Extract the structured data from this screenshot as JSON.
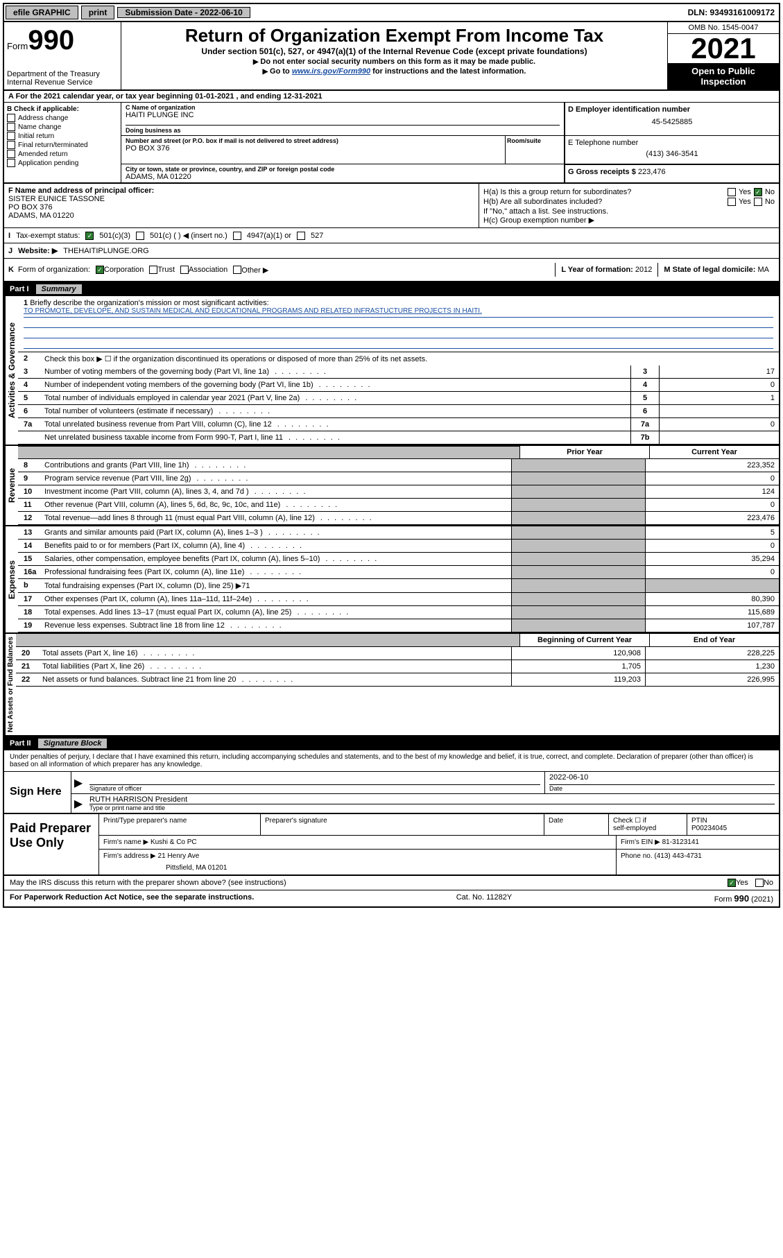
{
  "topbar": {
    "efile": "efile GRAPHIC",
    "print": "print",
    "sub_label": "Submission Date - 2022-06-10",
    "dln": "DLN: 93493161009172"
  },
  "header": {
    "form_prefix": "Form",
    "form_no": "990",
    "dept1": "Department of the Treasury",
    "dept2": "Internal Revenue Service",
    "title": "Return of Organization Exempt From Income Tax",
    "subtitle": "Under section 501(c), 527, or 4947(a)(1) of the Internal Revenue Code (except private foundations)",
    "instr1": "Do not enter social security numbers on this form as it may be made public.",
    "instr2a": "Go to ",
    "instr2link": "www.irs.gov/Form990",
    "instr2b": " for instructions and the latest information.",
    "omb": "OMB No. 1545-0047",
    "year": "2021",
    "open1": "Open to Public",
    "open2": "Inspection"
  },
  "rowA": "A For the 2021 calendar year, or tax year beginning 01-01-2021   , and ending 12-31-2021",
  "colB": {
    "title": "B Check if applicable:",
    "items": [
      "Address change",
      "Name change",
      "Initial return",
      "Final return/terminated",
      "Amended return",
      "Application pending"
    ]
  },
  "colC": {
    "name_label": "C Name of organization",
    "name": "HAITI PLUNGE INC",
    "dba_label": "Doing business as",
    "dba": "",
    "addr_label": "Number and street (or P.O. box if mail is not delivered to street address)",
    "room_label": "Room/suite",
    "addr": "PO BOX 376",
    "city_label": "City or town, state or province, country, and ZIP or foreign postal code",
    "city": "ADAMS, MA  01220"
  },
  "colD": {
    "d_label": "D Employer identification number",
    "d_val": "45-5425885",
    "e_label": "E Telephone number",
    "e_val": "(413) 346-3541",
    "g_label": "G Gross receipts $",
    "g_val": "223,476"
  },
  "sectionF": {
    "f_label": "F Name and address of principal officer:",
    "f_name": "SISTER EUNICE TASSONE",
    "f_addr1": "PO BOX 376",
    "f_addr2": "ADAMS, MA  01220",
    "ha": "H(a)  Is this a group return for subordinates?",
    "hb": "H(b)  Are all subordinates included?",
    "hb_note": "If \"No,\" attach a list. See instructions.",
    "hc": "H(c)  Group exemption number ▶",
    "yes": "Yes",
    "no": "No"
  },
  "rowI": {
    "prefix": "I",
    "label": "Tax-exempt status:",
    "opt1": "501(c)(3)",
    "opt2": "501(c) (   ) ◀ (insert no.)",
    "opt3": "4947(a)(1) or",
    "opt4": "527"
  },
  "rowJ": {
    "prefix": "J",
    "label": "Website: ▶",
    "val": "THEHAITIPLUNGE.ORG"
  },
  "rowK": {
    "prefix": "K",
    "label": "Form of organization:",
    "opts": [
      "Corporation",
      "Trust",
      "Association",
      "Other ▶"
    ],
    "l_label": "L Year of formation:",
    "l_val": "2012",
    "m_label": "M State of legal domicile:",
    "m_val": "MA"
  },
  "partI": {
    "label": "Part I",
    "title": "Summary"
  },
  "briefly": {
    "n": "1",
    "label": "Briefly describe the organization's mission or most significant activities:",
    "mission": "TO PROMOTE, DEVELOPE, AND SUSTAIN MEDICAL AND EDUCATIONAL PROGRAMS AND RELATED INFRASTUCTURE PROJECTS IN HAITI."
  },
  "gov_label": "Activities & Governance",
  "rev_label": "Revenue",
  "exp_label": "Expenses",
  "net_label": "Net Assets or Fund Balances",
  "line2": {
    "n": "2",
    "text": "Check this box ▶ ☐  if the organization discontinued its operations or disposed of more than 25% of its net assets."
  },
  "simple_rows": [
    {
      "n": "3",
      "text": "Number of voting members of the governing body (Part VI, line 1a)",
      "box": "3",
      "val": "17"
    },
    {
      "n": "4",
      "text": "Number of independent voting members of the governing body (Part VI, line 1b)",
      "box": "4",
      "val": "0"
    },
    {
      "n": "5",
      "text": "Total number of individuals employed in calendar year 2021 (Part V, line 2a)",
      "box": "5",
      "val": "1"
    },
    {
      "n": "6",
      "text": "Total number of volunteers (estimate if necessary)",
      "box": "6",
      "val": ""
    },
    {
      "n": "7a",
      "text": "Total unrelated business revenue from Part VIII, column (C), line 12",
      "box": "7a",
      "val": "0"
    },
    {
      "n": "",
      "text": "Net unrelated business taxable income from Form 990-T, Part I, line 11",
      "box": "7b",
      "val": ""
    }
  ],
  "two_col_hdr": {
    "prior": "Prior Year",
    "current": "Current Year"
  },
  "rev_rows": [
    {
      "n": "8",
      "text": "Contributions and grants (Part VIII, line 1h)",
      "prior": "",
      "curr": "223,352"
    },
    {
      "n": "9",
      "text": "Program service revenue (Part VIII, line 2g)",
      "prior": "",
      "curr": "0"
    },
    {
      "n": "10",
      "text": "Investment income (Part VIII, column (A), lines 3, 4, and 7d )",
      "prior": "",
      "curr": "124"
    },
    {
      "n": "11",
      "text": "Other revenue (Part VIII, column (A), lines 5, 6d, 8c, 9c, 10c, and 11e)",
      "prior": "",
      "curr": "0"
    },
    {
      "n": "12",
      "text": "Total revenue—add lines 8 through 11 (must equal Part VIII, column (A), line 12)",
      "prior": "",
      "curr": "223,476"
    }
  ],
  "exp_rows": [
    {
      "n": "13",
      "text": "Grants and similar amounts paid (Part IX, column (A), lines 1–3 )",
      "prior": "",
      "curr": "5"
    },
    {
      "n": "14",
      "text": "Benefits paid to or for members (Part IX, column (A), line 4)",
      "prior": "",
      "curr": "0"
    },
    {
      "n": "15",
      "text": "Salaries, other compensation, employee benefits (Part IX, column (A), lines 5–10)",
      "prior": "",
      "curr": "35,294"
    },
    {
      "n": "16a",
      "text": "Professional fundraising fees (Part IX, column (A), line 11e)",
      "prior": "",
      "curr": "0"
    }
  ],
  "line16b": {
    "n": "b",
    "text": "Total fundraising expenses (Part IX, column (D), line 25) ▶71"
  },
  "exp_rows2": [
    {
      "n": "17",
      "text": "Other expenses (Part IX, column (A), lines 11a–11d, 11f–24e)",
      "prior": "",
      "curr": "80,390"
    },
    {
      "n": "18",
      "text": "Total expenses. Add lines 13–17 (must equal Part IX, column (A), line 25)",
      "prior": "",
      "curr": "115,689"
    },
    {
      "n": "19",
      "text": "Revenue less expenses. Subtract line 18 from line 12",
      "prior": "",
      "curr": "107,787"
    }
  ],
  "net_hdr": {
    "begin": "Beginning of Current Year",
    "end": "End of Year"
  },
  "net_rows": [
    {
      "n": "20",
      "text": "Total assets (Part X, line 16)",
      "begin": "120,908",
      "end": "228,225"
    },
    {
      "n": "21",
      "text": "Total liabilities (Part X, line 26)",
      "begin": "1,705",
      "end": "1,230"
    },
    {
      "n": "22",
      "text": "Net assets or fund balances. Subtract line 21 from line 20",
      "begin": "119,203",
      "end": "226,995"
    }
  ],
  "partII": {
    "label": "Part II",
    "title": "Signature Block"
  },
  "penalties": "Under penalties of perjury, I declare that I have examined this return, including accompanying schedules and statements, and to the best of my knowledge and belief, it is true, correct, and complete. Declaration of preparer (other than officer) is based on all information of which preparer has any knowledge.",
  "sign": {
    "left": "Sign Here",
    "sig_label": "Signature of officer",
    "date_label": "Date",
    "date": "2022-06-10",
    "name": "RUTH HARRISON  President",
    "name_label": "Type or print name and title"
  },
  "paid": {
    "left": "Paid Preparer Use Only",
    "h1": "Print/Type preparer's name",
    "h2": "Preparer's signature",
    "h3": "Date",
    "h4a": "Check ☐ if",
    "h4b": "self-employed",
    "h5": "PTIN",
    "ptin": "P00234045",
    "firm_name_label": "Firm's name    ▶",
    "firm_name": "Kushi & Co PC",
    "firm_ein_label": "Firm's EIN ▶",
    "firm_ein": "81-3123141",
    "firm_addr_label": "Firm's address ▶",
    "firm_addr1": "21 Henry Ave",
    "firm_addr2": "Pittsfield, MA  01201",
    "phone_label": "Phone no.",
    "phone": "(413) 443-4731"
  },
  "footer": {
    "discuss": "May the IRS discuss this return with the preparer shown above? (see instructions)",
    "yes": "Yes",
    "no": "No",
    "paperwork": "For Paperwork Reduction Act Notice, see the separate instructions.",
    "cat": "Cat. No. 11282Y",
    "form": "Form 990 (2021)"
  }
}
